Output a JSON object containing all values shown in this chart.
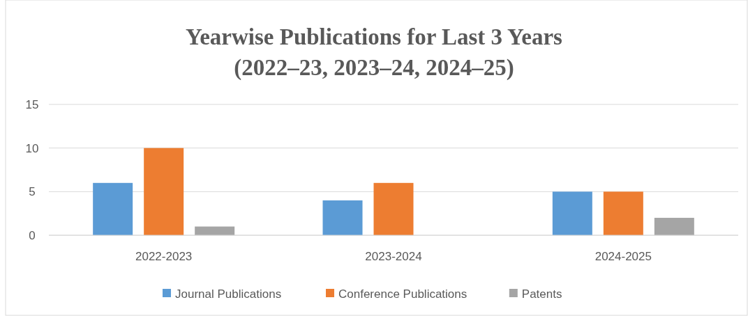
{
  "chart_data": {
    "type": "bar",
    "title": "Yearwise Publications for Last 3 Years",
    "subtitle": "(2022–23, 2023–24, 2024–25)",
    "categories": [
      "2022-2023",
      "2023-2024",
      "2024-2025"
    ],
    "series": [
      {
        "name": "Journal Publications",
        "color": "#5b9bd5",
        "values": [
          6,
          4,
          5
        ]
      },
      {
        "name": "Conference Publications",
        "color": "#ed7d31",
        "values": [
          10,
          6,
          5
        ]
      },
      {
        "name": "Patents",
        "color": "#a5a5a5",
        "values": [
          1,
          0,
          2
        ]
      }
    ],
    "ylim": [
      0,
      15
    ],
    "yticks": [
      0,
      5,
      10,
      15
    ],
    "grid": "y",
    "legend": "bottom"
  }
}
